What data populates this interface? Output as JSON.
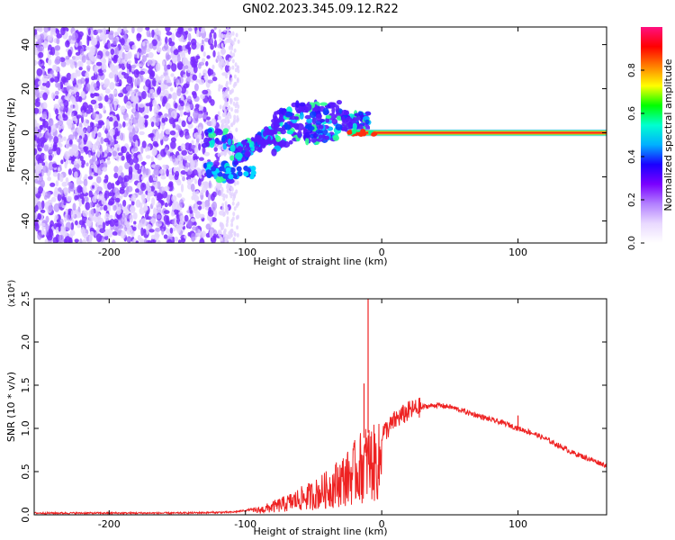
{
  "title": "GN02.2023.345.09.12.R22",
  "chart_data": [
    {
      "type": "heatmap",
      "xlabel": "Height of straight line (km)",
      "ylabel": "Frequency (Hz)",
      "xlim": [
        -255,
        165
      ],
      "ylim": [
        -50,
        48
      ],
      "xticks": [
        -200,
        -100,
        0,
        100
      ],
      "yticks": [
        -40,
        -20,
        0,
        20,
        40
      ],
      "colorbar": {
        "label": "Normalized spectral amplitude",
        "range": [
          0,
          1
        ],
        "ticks": [
          "0.0",
          "0.2",
          "0.4",
          "0.6",
          "0.8"
        ],
        "colormap": [
          "#ffffff",
          "#e9d9ff",
          "#b27fff",
          "#7a00ff",
          "#1a00ff",
          "#00b0ff",
          "#00ffd0",
          "#00ff00",
          "#ffff00",
          "#ff8000",
          "#ff0000",
          "#ff1080"
        ]
      },
      "features": {
        "noise_x_range": [
          -255,
          -120
        ],
        "noise_fade_x": [
          -140,
          -105
        ],
        "scatter_x_range": [
          -130,
          -10
        ],
        "main_line_x_range": [
          -25,
          165
        ],
        "main_line_frequency": 0,
        "lower_band_frequency": -18
      }
    },
    {
      "type": "line",
      "xlabel": "Height of straight line (km)",
      "ylabel": "SNR (10 * v/v)",
      "y_multiplier": "(x10⁴)",
      "xlim": [
        -255,
        165
      ],
      "ylim": [
        0,
        2.5
      ],
      "xticks": [
        -200,
        -100,
        0,
        100
      ],
      "yticks": [
        "0.0",
        "0.5",
        "1.0",
        "1.5",
        "2.0",
        "2.5"
      ],
      "color": "#ee2222",
      "x": [
        -255,
        -200,
        -150,
        -110,
        -100,
        -90,
        -80,
        -70,
        -60,
        -50,
        -40,
        -30,
        -25,
        -20,
        -15,
        -10,
        -5,
        0,
        5,
        10,
        20,
        30,
        40,
        50,
        60,
        70,
        80,
        90,
        100,
        110,
        120,
        130,
        140,
        150,
        165
      ],
      "y": [
        0.02,
        0.02,
        0.02,
        0.03,
        0.05,
        0.08,
        0.14,
        0.2,
        0.28,
        0.35,
        0.45,
        0.6,
        0.65,
        0.75,
        0.85,
        0.95,
        0.9,
        0.95,
        1.0,
        1.1,
        1.2,
        1.25,
        1.27,
        1.25,
        1.2,
        1.15,
        1.1,
        1.06,
        1.0,
        0.95,
        0.88,
        0.8,
        0.72,
        0.66,
        0.57
      ],
      "spikes": [
        {
          "x": -10,
          "y": 2.5
        },
        {
          "x": -13,
          "y": 1.52
        },
        {
          "x": 100,
          "y": 1.15
        }
      ]
    }
  ]
}
